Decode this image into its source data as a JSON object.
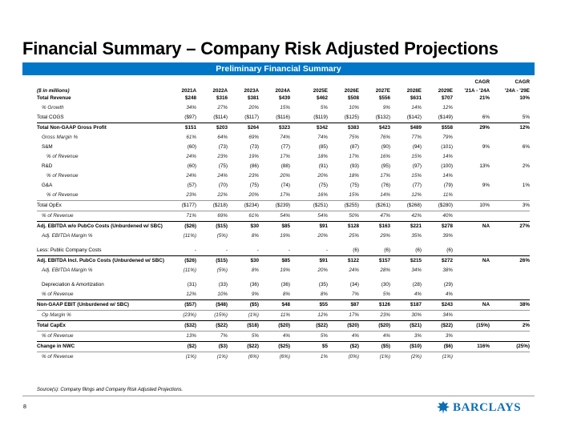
{
  "title": "Financial Summary – Company Risk Adjusted Projections",
  "banner": "Preliminary Financial Summary",
  "units_label": "($ in millions)",
  "columns": [
    "2021A",
    "2022A",
    "2023A",
    "2024A",
    "2025E",
    "2026E",
    "2027E",
    "2028E",
    "2029E"
  ],
  "cagr_headers": [
    {
      "top": "CAGR",
      "bottom": "'21A - '24A"
    },
    {
      "top": "CAGR",
      "bottom": "'24A - '29E"
    }
  ],
  "rows": [
    {
      "label": "Total Revenue",
      "values": [
        "$248",
        "$316",
        "$381",
        "$439",
        "$462",
        "$508",
        "$556",
        "$631",
        "$707"
      ],
      "cagr": [
        "21%",
        "10%"
      ]
    },
    {
      "label": "% Growth",
      "values": [
        "34%",
        "27%",
        "20%",
        "15%",
        "5%",
        "10%",
        "9%",
        "14%",
        "12%"
      ],
      "cagr": [
        "",
        ""
      ]
    },
    {
      "label": "Total COGS",
      "values": [
        "($97)",
        "($114)",
        "($117)",
        "($116)",
        "($119)",
        "($125)",
        "($132)",
        "($142)",
        "($149)"
      ],
      "cagr": [
        "6%",
        "5%"
      ]
    },
    {
      "label": "Total Non-GAAP Gross Profit",
      "values": [
        "$151",
        "$203",
        "$264",
        "$323",
        "$342",
        "$383",
        "$423",
        "$489",
        "$558"
      ],
      "cagr": [
        "29%",
        "12%"
      ]
    },
    {
      "label": "Gross Margin %",
      "values": [
        "61%",
        "64%",
        "69%",
        "74%",
        "74%",
        "75%",
        "76%",
        "77%",
        "79%"
      ],
      "cagr": [
        "",
        ""
      ]
    },
    {
      "label": "S&M",
      "values": [
        "(60)",
        "(73)",
        "(73)",
        "(77)",
        "(85)",
        "(87)",
        "(90)",
        "(94)",
        "(101)"
      ],
      "cagr": [
        "9%",
        "6%"
      ]
    },
    {
      "label": "% of Revenue",
      "values": [
        "24%",
        "23%",
        "19%",
        "17%",
        "18%",
        "17%",
        "16%",
        "15%",
        "14%"
      ],
      "cagr": [
        "",
        ""
      ]
    },
    {
      "label": "R&D",
      "values": [
        "(60)",
        "(75)",
        "(86)",
        "(88)",
        "(91)",
        "(93)",
        "(95)",
        "(97)",
        "(100)"
      ],
      "cagr": [
        "13%",
        "2%"
      ]
    },
    {
      "label": "% of Revenue",
      "values": [
        "24%",
        "24%",
        "23%",
        "20%",
        "20%",
        "18%",
        "17%",
        "15%",
        "14%"
      ],
      "cagr": [
        "",
        ""
      ]
    },
    {
      "label": "G&A",
      "values": [
        "(57)",
        "(70)",
        "(75)",
        "(74)",
        "(75)",
        "(75)",
        "(76)",
        "(77)",
        "(79)"
      ],
      "cagr": [
        "9%",
        "1%"
      ]
    },
    {
      "label": "% of Revenue",
      "values": [
        "23%",
        "22%",
        "20%",
        "17%",
        "16%",
        "15%",
        "14%",
        "12%",
        "11%"
      ],
      "cagr": [
        "",
        ""
      ]
    },
    {
      "label": "Total OpEx",
      "values": [
        "($177)",
        "($218)",
        "($234)",
        "($239)",
        "($251)",
        "($255)",
        "($261)",
        "($268)",
        "($280)"
      ],
      "cagr": [
        "10%",
        "3%"
      ]
    },
    {
      "label": "% of Revenue",
      "values": [
        "71%",
        "69%",
        "61%",
        "54%",
        "54%",
        "50%",
        "47%",
        "42%",
        "40%"
      ],
      "cagr": [
        "",
        ""
      ]
    },
    {
      "label": "Adj. EBITDA w/o PubCo Costs (Unburdened w/ SBC)",
      "values": [
        "($26)",
        "($15)",
        "$30",
        "$85",
        "$91",
        "$128",
        "$163",
        "$221",
        "$278"
      ],
      "cagr": [
        "NA",
        "27%"
      ]
    },
    {
      "label": "Adj. EBITDA Margin %",
      "values": [
        "(11%)",
        "(5%)",
        "8%",
        "19%",
        "20%",
        "25%",
        "29%",
        "35%",
        "39%"
      ],
      "cagr": [
        "",
        ""
      ]
    },
    {
      "label": "Less: Public Company Costs",
      "values": [
        "-",
        "-",
        "-",
        "-",
        "-",
        "(6)",
        "(6)",
        "(6)",
        "(6)"
      ],
      "cagr": [
        "",
        ""
      ]
    },
    {
      "label": "Adj. EBITDA Incl. PubCo Costs (Unburdened w/ SBC)",
      "values": [
        "($26)",
        "($15)",
        "$30",
        "$85",
        "$91",
        "$122",
        "$157",
        "$215",
        "$272"
      ],
      "cagr": [
        "NA",
        "26%"
      ]
    },
    {
      "label": "Adj. EBITDA Margin %",
      "values": [
        "(11%)",
        "(5%)",
        "8%",
        "19%",
        "20%",
        "24%",
        "28%",
        "34%",
        "38%"
      ],
      "cagr": [
        "",
        ""
      ]
    },
    {
      "label": "Depreciation & Amortization",
      "values": [
        "(31)",
        "(33)",
        "(36)",
        "(36)",
        "(35)",
        "(34)",
        "(30)",
        "(28)",
        "(29)"
      ],
      "cagr": [
        "",
        ""
      ]
    },
    {
      "label": "% of Revenue",
      "values": [
        "12%",
        "10%",
        "9%",
        "8%",
        "8%",
        "7%",
        "5%",
        "4%",
        "4%"
      ],
      "cagr": [
        "",
        ""
      ]
    },
    {
      "label": "Non-GAAP EBIT (Unburdened w/ SBC)",
      "values": [
        "($57)",
        "($48)",
        "($5)",
        "$48",
        "$55",
        "$87",
        "$126",
        "$187",
        "$243"
      ],
      "cagr": [
        "NA",
        "38%"
      ]
    },
    {
      "label": "Op Margin %",
      "values": [
        "(23%)",
        "(15%)",
        "(1%)",
        "11%",
        "12%",
        "17%",
        "23%",
        "30%",
        "34%"
      ],
      "cagr": [
        "",
        ""
      ]
    },
    {
      "label": "Total CapEx",
      "values": [
        "($32)",
        "($22)",
        "($18)",
        "($20)",
        "($22)",
        "($20)",
        "($20)",
        "($21)",
        "($22)"
      ],
      "cagr": [
        "(15%)",
        "2%"
      ]
    },
    {
      "label": "% of Revenue",
      "values": [
        "13%",
        "7%",
        "5%",
        "4%",
        "5%",
        "4%",
        "4%",
        "3%",
        "3%"
      ],
      "cagr": [
        "",
        ""
      ]
    },
    {
      "label": "Change in NWC",
      "values": [
        "($2)",
        "($3)",
        "($22)",
        "($25)",
        "$5",
        "($2)",
        "($5)",
        "($10)",
        "($6)"
      ],
      "cagr": [
        "116%",
        "(25%)"
      ]
    },
    {
      "label": "% of Revenue",
      "values": [
        "(1%)",
        "(1%)",
        "(6%)",
        "(6%)",
        "1%",
        "(0%)",
        "(1%)",
        "(2%)",
        "(1%)"
      ],
      "cagr": [
        "",
        ""
      ]
    }
  ],
  "source": "Source(s): Company filings and Company Risk Adjusted Projections.",
  "page_number": "8",
  "logo_text": "BARCLAYS",
  "colors": {
    "banner": "#0076c6",
    "logo": "#0d6eb4"
  }
}
